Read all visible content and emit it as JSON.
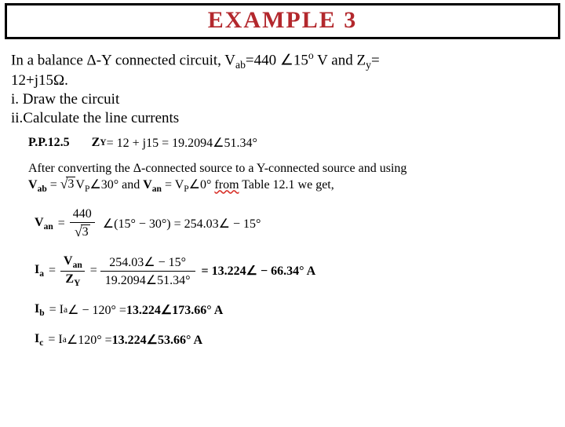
{
  "title": "EXAMPLE  3",
  "problem": {
    "line1_pre": "In a balance  Δ-Y connected circuit, V",
    "sub_ab": "ab",
    "line1_mid": "=440 ∠15",
    "sup_o": "o",
    "line1_post": " V and Z",
    "sub_y": "y",
    "line1_end": "=",
    "line2": "12+j15Ω.",
    "line3": "i. Draw the circuit",
    "line4": "ii.Calculate the line currents"
  },
  "solution": {
    "pp_label": "P.P.12.5",
    "zy_lhs": "Z",
    "zy_sub": "Y",
    "zy_rhs": " = 12 + j15 = 19.2094∠51.34°",
    "intro_a": "After converting the Δ-connected source to a Y-connected source and using",
    "intro_b_pre": "",
    "intro_vab": "V",
    "intro_vab_sub": "ab",
    "intro_eq1": " = ",
    "intro_sqrt3": "3",
    "intro_vp": "V",
    "intro_vp_sub": "P",
    "intro_ang30": "∠30° and ",
    "intro_van": "V",
    "intro_van_sub": "an",
    "intro_eq2": " = V",
    "intro_vp2_sub": "P",
    "intro_ang0": "∠0° ",
    "intro_from": "from",
    "intro_tail": " Table 12.1 we get,",
    "van": {
      "lhs": "V",
      "lhs_sub": "an",
      "num": "440",
      "den_root": "3",
      "ang": "∠(15° − 30°) = 254.03∠ − 15°"
    },
    "ia": {
      "lhs": "I",
      "lhs_sub": "a",
      "num_v": "V",
      "num_v_sub": "an",
      "den_z": "Z",
      "den_z_sub": "Y",
      "num2": "254.03∠ − 15°",
      "den2": "19.2094∠51.34°",
      "res": " = 13.224∠ − 66.34° A"
    },
    "ib": {
      "lhs": "I",
      "lhs_sub": "b",
      "eq1": " = I",
      "eq1_sub": "a",
      "eq2": "∠ − 120° = ",
      "res": "13.224∠173.66° A"
    },
    "ic": {
      "lhs": "I",
      "lhs_sub": "c",
      "eq1": " = I",
      "eq1_sub": "a",
      "eq2": "∠120° =",
      "res": "13.224∠53.66° A"
    }
  }
}
